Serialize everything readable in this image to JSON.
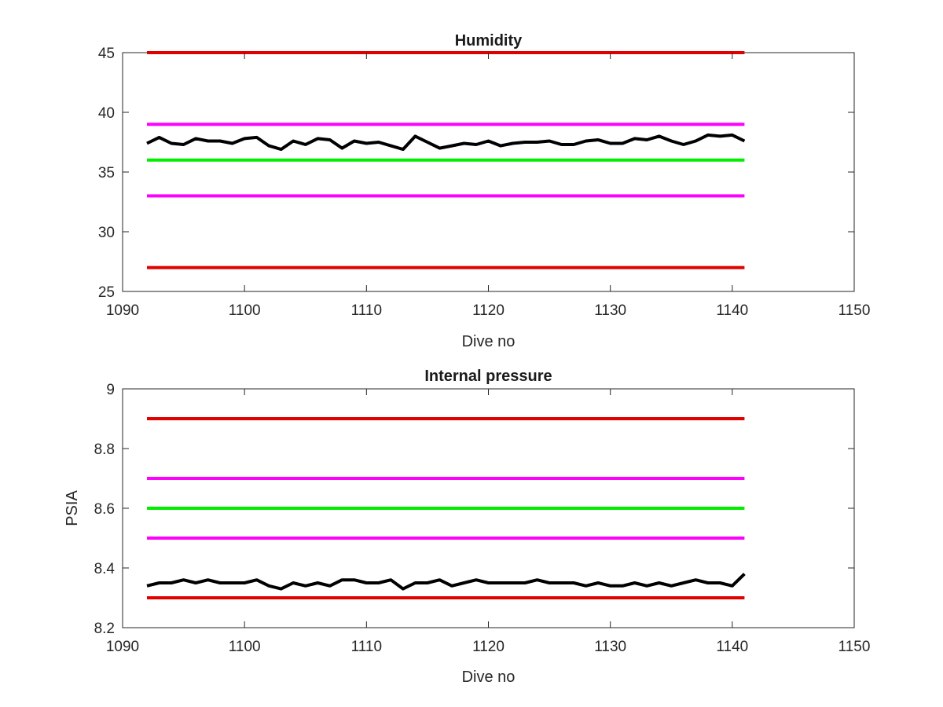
{
  "chart_data": [
    {
      "type": "line",
      "title": "Humidity",
      "xlabel": "Dive no",
      "ylabel": "",
      "xlim": [
        1090,
        1150
      ],
      "ylim": [
        25,
        45
      ],
      "xticks": [
        "1090",
        "1100",
        "1110",
        "1120",
        "1130",
        "1140",
        "1150"
      ],
      "yticks": [
        "25",
        "30",
        "35",
        "40",
        "45"
      ],
      "grid": false,
      "series": [
        {
          "color": "#e00000",
          "x": [
            1092,
            1141
          ],
          "y": [
            45,
            45
          ]
        },
        {
          "color": "#ff00ff",
          "x": [
            1092,
            1141
          ],
          "y": [
            39,
            39
          ]
        },
        {
          "color": "#00ee00",
          "x": [
            1092,
            1141
          ],
          "y": [
            36,
            36
          ]
        },
        {
          "color": "#ff00ff",
          "x": [
            1092,
            1141
          ],
          "y": [
            33,
            33
          ]
        },
        {
          "color": "#e00000",
          "x": [
            1092,
            1141
          ],
          "y": [
            27,
            27
          ]
        },
        {
          "color": "#000000",
          "x": [
            1092,
            1093,
            1094,
            1095,
            1096,
            1097,
            1098,
            1099,
            1100,
            1101,
            1102,
            1103,
            1104,
            1105,
            1106,
            1107,
            1108,
            1109,
            1110,
            1111,
            1112,
            1113,
            1114,
            1115,
            1116,
            1117,
            1118,
            1119,
            1120,
            1121,
            1122,
            1123,
            1124,
            1125,
            1126,
            1127,
            1128,
            1129,
            1130,
            1131,
            1132,
            1133,
            1134,
            1135,
            1136,
            1137,
            1138,
            1139,
            1140,
            1141
          ],
          "y": [
            37.4,
            37.9,
            37.4,
            37.3,
            37.8,
            37.6,
            37.6,
            37.4,
            37.8,
            37.9,
            37.2,
            36.9,
            37.6,
            37.3,
            37.8,
            37.7,
            37.0,
            37.6,
            37.4,
            37.5,
            37.2,
            36.9,
            38.0,
            37.5,
            37.0,
            37.2,
            37.4,
            37.3,
            37.6,
            37.2,
            37.4,
            37.5,
            37.5,
            37.6,
            37.3,
            37.3,
            37.6,
            37.7,
            37.4,
            37.4,
            37.8,
            37.7,
            38.0,
            37.6,
            37.3,
            37.6,
            38.1,
            38.0,
            38.1,
            37.6
          ]
        }
      ]
    },
    {
      "type": "line",
      "title": "Internal pressure",
      "xlabel": "Dive no",
      "ylabel": "PSIA",
      "xlim": [
        1090,
        1150
      ],
      "ylim": [
        8.2,
        9
      ],
      "xticks": [
        "1090",
        "1100",
        "1110",
        "1120",
        "1130",
        "1140",
        "1150"
      ],
      "yticks": [
        "8.2",
        "8.4",
        "8.6",
        "8.8",
        "9"
      ],
      "grid": false,
      "series": [
        {
          "color": "#e00000",
          "x": [
            1092,
            1141
          ],
          "y": [
            8.9,
            8.9
          ]
        },
        {
          "color": "#ff00ff",
          "x": [
            1092,
            1141
          ],
          "y": [
            8.7,
            8.7
          ]
        },
        {
          "color": "#00ee00",
          "x": [
            1092,
            1141
          ],
          "y": [
            8.6,
            8.6
          ]
        },
        {
          "color": "#ff00ff",
          "x": [
            1092,
            1141
          ],
          "y": [
            8.5,
            8.5
          ]
        },
        {
          "color": "#e00000",
          "x": [
            1092,
            1141
          ],
          "y": [
            8.3,
            8.3
          ]
        },
        {
          "color": "#000000",
          "x": [
            1092,
            1093,
            1094,
            1095,
            1096,
            1097,
            1098,
            1099,
            1100,
            1101,
            1102,
            1103,
            1104,
            1105,
            1106,
            1107,
            1108,
            1109,
            1110,
            1111,
            1112,
            1113,
            1114,
            1115,
            1116,
            1117,
            1118,
            1119,
            1120,
            1121,
            1122,
            1123,
            1124,
            1125,
            1126,
            1127,
            1128,
            1129,
            1130,
            1131,
            1132,
            1133,
            1134,
            1135,
            1136,
            1137,
            1138,
            1139,
            1140,
            1141
          ],
          "y": [
            8.34,
            8.35,
            8.35,
            8.36,
            8.35,
            8.36,
            8.35,
            8.35,
            8.35,
            8.36,
            8.34,
            8.33,
            8.35,
            8.34,
            8.35,
            8.34,
            8.36,
            8.36,
            8.35,
            8.35,
            8.36,
            8.33,
            8.35,
            8.35,
            8.36,
            8.34,
            8.35,
            8.36,
            8.35,
            8.35,
            8.35,
            8.35,
            8.36,
            8.35,
            8.35,
            8.35,
            8.34,
            8.35,
            8.34,
            8.34,
            8.35,
            8.34,
            8.35,
            8.34,
            8.35,
            8.36,
            8.35,
            8.35,
            8.34,
            8.38
          ]
        }
      ]
    }
  ]
}
